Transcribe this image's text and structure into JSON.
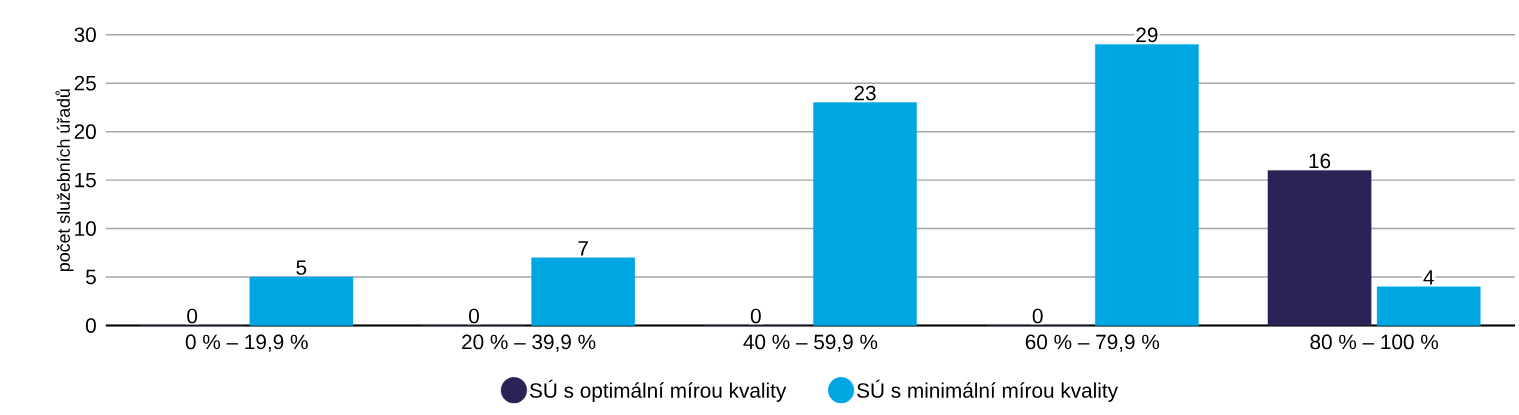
{
  "chart_data": {
    "type": "bar",
    "ylabel": "počet služebních úřadů",
    "categories": [
      "0 % – 19,9 %",
      "20 % – 39,9 %",
      "40 % – 59,9 %",
      "60 % – 79,9 %",
      "80 % – 100 %"
    ],
    "series": [
      {
        "name": "SÚ s optimální mírou kvality",
        "color": "#2a2356",
        "values": [
          0,
          0,
          0,
          0,
          16
        ]
      },
      {
        "name": "SÚ s minimální mírou kvality",
        "color": "#00a6e2",
        "values": [
          5,
          7,
          23,
          29,
          4
        ]
      }
    ],
    "ylim": [
      0,
      30
    ],
    "yticks": [
      0,
      5,
      10,
      15,
      20,
      25,
      30
    ],
    "grid": "y",
    "legend": "bottom",
    "data_labels": true
  }
}
